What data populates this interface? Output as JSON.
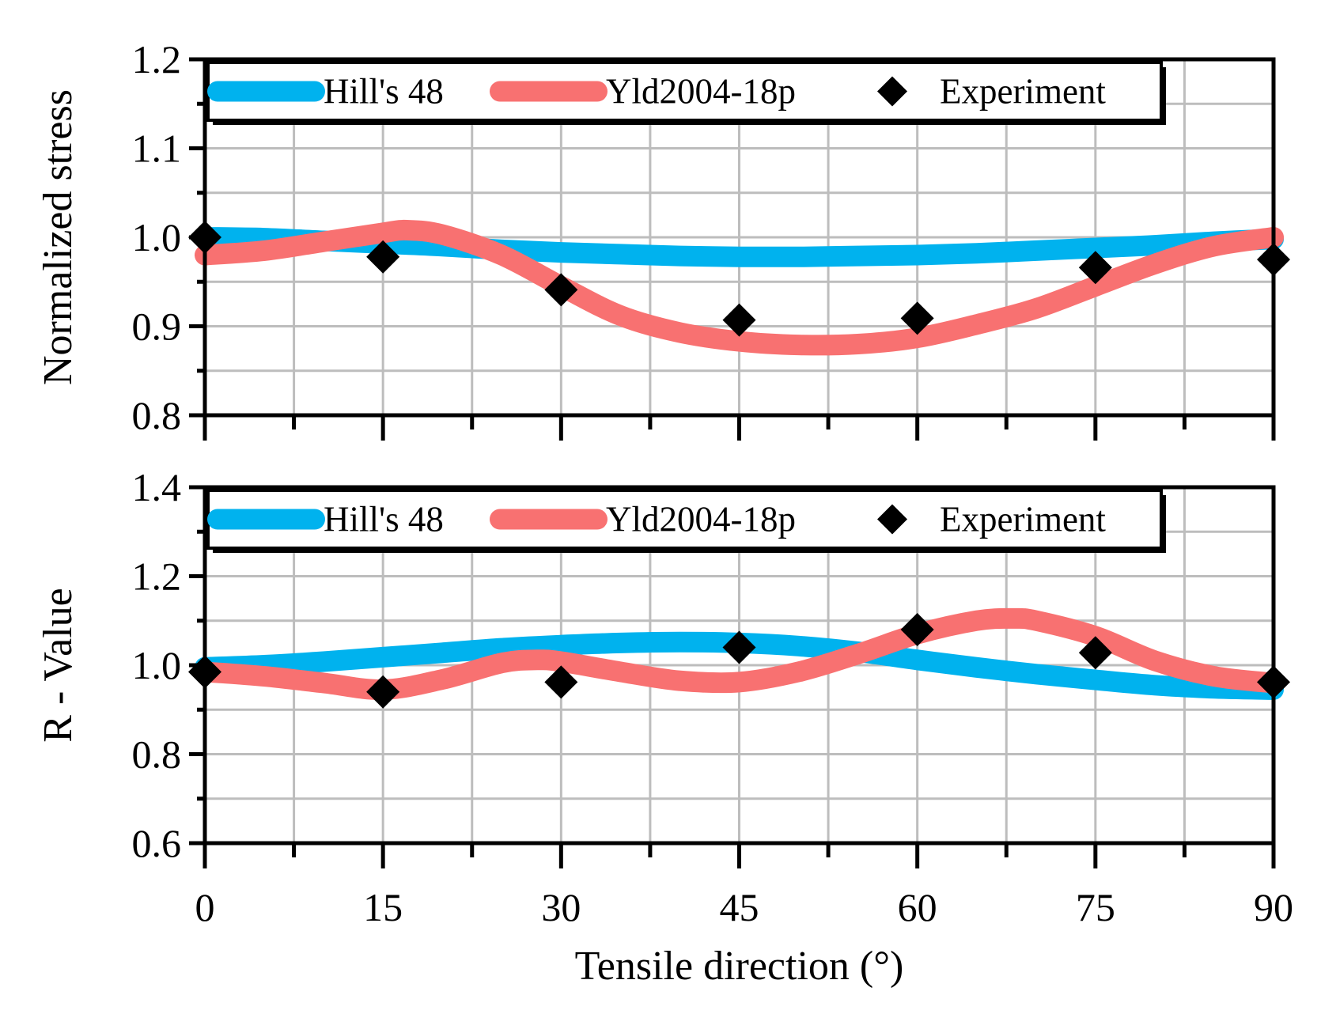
{
  "chart_data": [
    {
      "type": "line",
      "ylabel": "Normalized stress",
      "xlabel": "",
      "xlim": [
        0,
        90
      ],
      "ylim": [
        0.8,
        1.2
      ],
      "yticks": [
        "0.8",
        "0.9",
        "1.0",
        "1.1",
        "1.2"
      ],
      "grid": true,
      "legend_position": "top",
      "series": [
        {
          "name": "Hill's 48",
          "kind": "line",
          "color": "#00b2ee",
          "x": [
            0,
            5,
            10,
            15,
            20,
            25,
            30,
            35,
            40,
            45,
            50,
            55,
            60,
            65,
            70,
            75,
            80,
            85,
            90
          ],
          "values": [
            1.0,
            0.999,
            0.996,
            0.993,
            0.99,
            0.986,
            0.983,
            0.981,
            0.979,
            0.978,
            0.978,
            0.979,
            0.98,
            0.982,
            0.985,
            0.988,
            0.991,
            0.995,
            0.998
          ]
        },
        {
          "name": "Yld2004-18p",
          "kind": "line",
          "color": "#f87171",
          "x": [
            0,
            5,
            10,
            15,
            17,
            20,
            25,
            30,
            35,
            40,
            45,
            50,
            55,
            60,
            65,
            70,
            75,
            80,
            85,
            90
          ],
          "values": [
            0.98,
            0.985,
            0.995,
            1.005,
            1.008,
            1.003,
            0.98,
            0.945,
            0.912,
            0.893,
            0.883,
            0.879,
            0.88,
            0.887,
            0.902,
            0.92,
            0.945,
            0.97,
            0.99,
            1.0
          ]
        },
        {
          "name": "Experiment",
          "kind": "scatter",
          "color": "#000000",
          "x": [
            0,
            15,
            30,
            45,
            60,
            75,
            90
          ],
          "values": [
            1.0,
            0.978,
            0.941,
            0.907,
            0.909,
            0.966,
            0.975
          ]
        }
      ]
    },
    {
      "type": "line",
      "ylabel": "R - Value",
      "xlabel": "Tensile direction (°)",
      "xlim": [
        0,
        90
      ],
      "ylim": [
        0.6,
        1.4
      ],
      "yticks": [
        "0.6",
        "0.8",
        "1.0",
        "1.2",
        "1.4"
      ],
      "xticks": [
        "0",
        "15",
        "30",
        "45",
        "60",
        "75",
        "90"
      ],
      "grid": true,
      "legend_position": "top",
      "series": [
        {
          "name": "Hill's 48",
          "kind": "line",
          "color": "#00b2ee",
          "x": [
            0,
            5,
            10,
            15,
            20,
            25,
            30,
            35,
            40,
            45,
            50,
            55,
            60,
            65,
            70,
            75,
            80,
            85,
            90
          ],
          "values": [
            0.995,
            1.0,
            1.008,
            1.018,
            1.028,
            1.038,
            1.045,
            1.05,
            1.052,
            1.05,
            1.043,
            1.03,
            1.012,
            0.995,
            0.98,
            0.967,
            0.955,
            0.948,
            0.945
          ]
        },
        {
          "name": "Yld2004-18p",
          "kind": "line",
          "color": "#f87171",
          "x": [
            0,
            5,
            10,
            15,
            20,
            25,
            28,
            30,
            35,
            40,
            45,
            50,
            55,
            60,
            65,
            68,
            70,
            75,
            80,
            85,
            90
          ],
          "values": [
            0.985,
            0.975,
            0.96,
            0.945,
            0.968,
            1.005,
            1.012,
            1.008,
            0.985,
            0.965,
            0.962,
            0.985,
            1.025,
            1.07,
            1.1,
            1.105,
            1.1,
            1.065,
            1.01,
            0.975,
            0.96
          ]
        },
        {
          "name": "Experiment",
          "kind": "scatter",
          "color": "#000000",
          "x": [
            0,
            15,
            30,
            45,
            60,
            75,
            90
          ],
          "values": [
            0.985,
            0.94,
            0.962,
            1.04,
            1.08,
            1.028,
            0.962
          ]
        }
      ]
    }
  ]
}
